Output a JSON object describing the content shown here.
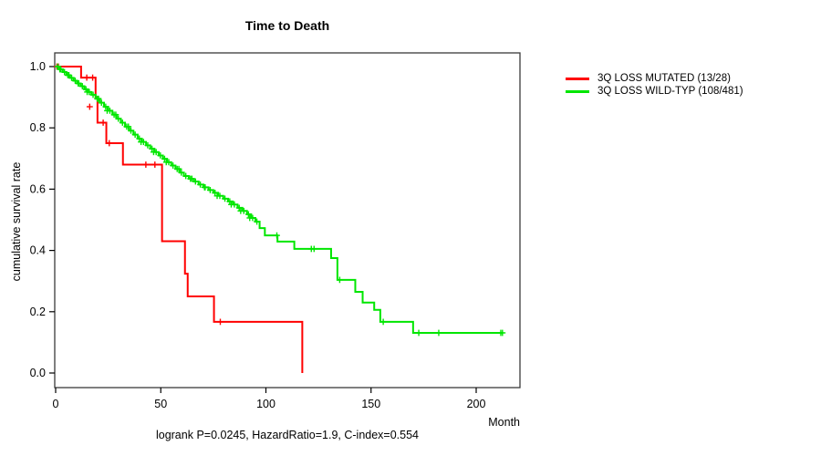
{
  "window": {
    "background": "#ffffff"
  },
  "chart_data": {
    "type": "line",
    "subtype": "kaplan-meier-step",
    "title": "Time to Death",
    "xlabel": "Month",
    "ylabel": "cumulative survival rate",
    "subtitle": "logrank P=0.0245, HazardRatio=1.9, C-index=0.554",
    "x_ticks": [
      0,
      50,
      100,
      150,
      200
    ],
    "y_ticks": [
      0.0,
      0.2,
      0.4,
      0.6,
      0.8,
      1.0
    ],
    "xlim": [
      0,
      220
    ],
    "ylim": [
      0.0,
      1.0
    ],
    "grid": false,
    "legend_position": "outside-top-right",
    "frame_color": "#3a3a3a",
    "series": [
      {
        "name": "3Q LOSS MUTATED (13/28)",
        "color": "#ff0000",
        "end": "drop_to_zero",
        "steps": [
          [
            0,
            1.0
          ],
          [
            12.1,
            0.964
          ],
          [
            19,
            0.899
          ],
          [
            19.9,
            0.817
          ],
          [
            24.1,
            0.75
          ],
          [
            32,
            0.68
          ],
          [
            50.6,
            0.43
          ],
          [
            61.5,
            0.324
          ],
          [
            62.8,
            0.25
          ],
          [
            75.3,
            0.167
          ],
          [
            117.3,
            0
          ]
        ],
        "censors": [
          [
            0.6,
            1.0
          ],
          [
            1.3,
            1.0
          ],
          [
            14.8,
            0.964
          ],
          [
            17.6,
            0.964
          ],
          [
            16.2,
            0.869
          ],
          [
            22.6,
            0.817
          ],
          [
            25.5,
            0.75
          ],
          [
            42.9,
            0.68
          ],
          [
            47.2,
            0.68
          ],
          [
            78.3,
            0.167
          ]
        ]
      },
      {
        "name": "3Q LOSS WILD-TYP (108/481)",
        "color": "#00e600",
        "end": "terminal_tick",
        "end_time": 212.5,
        "steps": [
          [
            0,
            1.0
          ],
          [
            1.7,
            0.991
          ],
          [
            3.4,
            0.982
          ],
          [
            5.1,
            0.972
          ],
          [
            6.8,
            0.963
          ],
          [
            8.5,
            0.954
          ],
          [
            10.2,
            0.945
          ],
          [
            11.9,
            0.936
          ],
          [
            13.6,
            0.926
          ],
          [
            15.3,
            0.917
          ],
          [
            17,
            0.908
          ],
          [
            19,
            0.895
          ],
          [
            21,
            0.882
          ],
          [
            23,
            0.869
          ],
          [
            25,
            0.856
          ],
          [
            27,
            0.843
          ],
          [
            29,
            0.83
          ],
          [
            31,
            0.817
          ],
          [
            33,
            0.804
          ],
          [
            35,
            0.791
          ],
          [
            37,
            0.778
          ],
          [
            39,
            0.765
          ],
          [
            41,
            0.754
          ],
          [
            43,
            0.743
          ],
          [
            45,
            0.732
          ],
          [
            47,
            0.721
          ],
          [
            49,
            0.71
          ],
          [
            51,
            0.699
          ],
          [
            53,
            0.688
          ],
          [
            55,
            0.677
          ],
          [
            57,
            0.666
          ],
          [
            59,
            0.654
          ],
          [
            61,
            0.643
          ],
          [
            63.3,
            0.634
          ],
          [
            65.7,
            0.625
          ],
          [
            68,
            0.615
          ],
          [
            70.3,
            0.606
          ],
          [
            72.7,
            0.597
          ],
          [
            75,
            0.588
          ],
          [
            77.3,
            0.578
          ],
          [
            79.7,
            0.569
          ],
          [
            82,
            0.56
          ],
          [
            84.3,
            0.55
          ],
          [
            86.5,
            0.539
          ],
          [
            88.8,
            0.529
          ],
          [
            91,
            0.518
          ],
          [
            93,
            0.506
          ],
          [
            95,
            0.494
          ],
          [
            97,
            0.473
          ],
          [
            99.5,
            0.449
          ],
          [
            105.5,
            0.429
          ],
          [
            113.5,
            0.405
          ],
          [
            131,
            0.375
          ],
          [
            134,
            0.304
          ],
          [
            142.5,
            0.265
          ],
          [
            146,
            0.23
          ],
          [
            151.5,
            0.206
          ],
          [
            154.4,
            0.167
          ],
          [
            170,
            0.131
          ]
        ],
        "censors": [
          [
            1,
            1.0
          ],
          [
            2.5,
            0.991
          ],
          [
            4.2,
            0.982
          ],
          [
            5.8,
            0.972
          ],
          [
            7.6,
            0.963
          ],
          [
            9.3,
            0.954
          ],
          [
            11,
            0.945
          ],
          [
            12.7,
            0.936
          ],
          [
            14.4,
            0.926
          ],
          [
            16,
            0.917
          ],
          [
            17.8,
            0.908
          ],
          [
            19.8,
            0.895
          ],
          [
            21.8,
            0.882
          ],
          [
            23.8,
            0.869
          ],
          [
            25.8,
            0.856
          ],
          [
            27.8,
            0.843
          ],
          [
            29.8,
            0.83
          ],
          [
            31.8,
            0.817
          ],
          [
            33.8,
            0.804
          ],
          [
            35.8,
            0.791
          ],
          [
            37.8,
            0.778
          ],
          [
            39.8,
            0.765
          ],
          [
            41.8,
            0.754
          ],
          [
            43.8,
            0.743
          ],
          [
            45.8,
            0.732
          ],
          [
            47.8,
            0.721
          ],
          [
            49.8,
            0.71
          ],
          [
            51.8,
            0.699
          ],
          [
            53.8,
            0.688
          ],
          [
            55.8,
            0.677
          ],
          [
            57.8,
            0.666
          ],
          [
            59.8,
            0.654
          ],
          [
            61.9,
            0.643
          ],
          [
            64.1,
            0.634
          ],
          [
            66.5,
            0.625
          ],
          [
            68.8,
            0.615
          ],
          [
            71.1,
            0.606
          ],
          [
            73.5,
            0.597
          ],
          [
            75.8,
            0.588
          ],
          [
            78.1,
            0.578
          ],
          [
            80.5,
            0.569
          ],
          [
            82.8,
            0.56
          ],
          [
            85,
            0.55
          ],
          [
            87.3,
            0.539
          ],
          [
            89.5,
            0.529
          ],
          [
            91.7,
            0.518
          ],
          [
            93.7,
            0.506
          ],
          [
            95.7,
            0.494
          ],
          [
            2,
            0.991
          ],
          [
            6.3,
            0.972
          ],
          [
            10.7,
            0.945
          ],
          [
            15,
            0.917
          ],
          [
            20.4,
            0.895
          ],
          [
            24.5,
            0.856
          ],
          [
            28.6,
            0.843
          ],
          [
            34.6,
            0.804
          ],
          [
            40.6,
            0.754
          ],
          [
            46.6,
            0.721
          ],
          [
            52.6,
            0.688
          ],
          [
            58.6,
            0.666
          ],
          [
            64.8,
            0.634
          ],
          [
            70.8,
            0.606
          ],
          [
            76.8,
            0.578
          ],
          [
            83.5,
            0.55
          ],
          [
            88,
            0.529
          ],
          [
            92.3,
            0.506
          ],
          [
            105.2,
            0.449
          ],
          [
            121.6,
            0.405
          ],
          [
            122.9,
            0.405
          ],
          [
            135.1,
            0.304
          ],
          [
            155.8,
            0.167
          ],
          [
            172.7,
            0.131
          ],
          [
            182.2,
            0.131
          ],
          [
            211.7,
            0.131
          ],
          [
            212.5,
            0.131
          ]
        ]
      }
    ]
  }
}
